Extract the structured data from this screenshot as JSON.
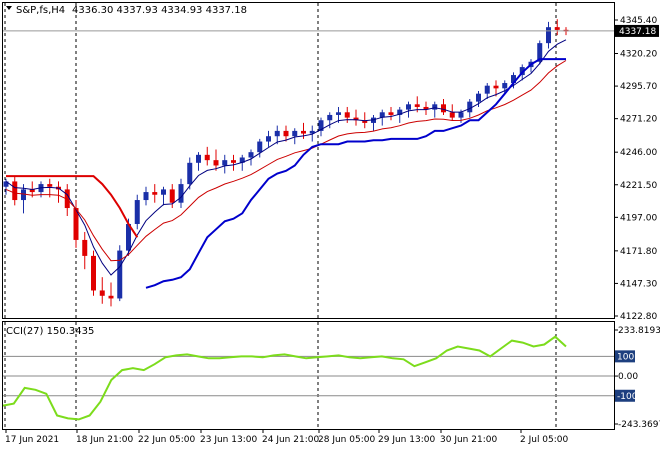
{
  "header": {
    "title": "S&P,fs,H4",
    "ohlc": "4336.30 4337.93 4334.93 4337.18",
    "collapse_icon": "triangle-down-icon"
  },
  "main_panel": {
    "price_labels": [
      "4345.40",
      "4320.20",
      "4295.70",
      "4271.20",
      "4246.00",
      "4221.50",
      "4197.00",
      "4171.80",
      "4147.30",
      "4122.80"
    ],
    "current_price": "4337.18",
    "current_price_value": 4337.18
  },
  "cci_panel": {
    "label": "CCI(27) 150.3435",
    "levels": [
      {
        "text": "233.8193",
        "highlight": false
      },
      {
        "text": "100",
        "highlight": true
      },
      {
        "text": "0.00",
        "highlight": false
      },
      {
        "text": "-100",
        "highlight": true
      },
      {
        "text": "-243.3697",
        "highlight": false
      }
    ]
  },
  "time_axis": [
    "17 Jun 2021",
    "18 Jun 21:00",
    "22 Jun 05:00",
    "23 Jun 13:00",
    "24 Jun 21:00",
    "28 Jun 05:00",
    "29 Jun 13:00",
    "30 Jun 21:00",
    "2 Jul 05:00"
  ],
  "colors": {
    "background": "#ffffff",
    "grid": "#c8c8c8",
    "bull_candle": "#1a2fa8",
    "bear_candle": "#e00000",
    "ma_fast": "#000080",
    "ma_slow": "#cc0000",
    "trail_stop_up": "#0000cc",
    "trail_stop_down": "#dd0000",
    "cci_line": "#7cdc1c",
    "level_tag": "#1d3f7f",
    "price_tag": "#000000"
  },
  "chart_data": {
    "type": "candlestick",
    "y_range": [
      4122.8,
      4345.4
    ],
    "candles": [
      [
        4220,
        4226,
        4214,
        4224
      ],
      [
        4224,
        4228,
        4206,
        4210
      ],
      [
        4210,
        4222,
        4200,
        4218
      ],
      [
        4218,
        4224,
        4212,
        4216
      ],
      [
        4216,
        4224,
        4212,
        4222
      ],
      [
        4222,
        4226,
        4212,
        4220
      ],
      [
        4220,
        4224,
        4208,
        4218
      ],
      [
        4218,
        4222,
        4198,
        4204
      ],
      [
        4204,
        4210,
        4174,
        4180
      ],
      [
        4180,
        4186,
        4158,
        4168
      ],
      [
        4168,
        4172,
        4138,
        4142
      ],
      [
        4142,
        4152,
        4132,
        4138
      ],
      [
        4138,
        4148,
        4130,
        4136
      ],
      [
        4136,
        4176,
        4134,
        4172
      ],
      [
        4172,
        4196,
        4168,
        4192
      ],
      [
        4192,
        4214,
        4188,
        4210
      ],
      [
        4210,
        4220,
        4206,
        4216
      ],
      [
        4216,
        4222,
        4208,
        4214
      ],
      [
        4214,
        4220,
        4206,
        4218
      ],
      [
        4218,
        4222,
        4204,
        4208
      ],
      [
        4208,
        4226,
        4204,
        4222
      ],
      [
        4222,
        4242,
        4218,
        4238
      ],
      [
        4238,
        4246,
        4232,
        4244
      ],
      [
        4244,
        4250,
        4236,
        4240
      ],
      [
        4240,
        4248,
        4232,
        4236
      ],
      [
        4236,
        4244,
        4230,
        4240
      ],
      [
        4240,
        4244,
        4232,
        4238
      ],
      [
        4238,
        4244,
        4232,
        4242
      ],
      [
        4242,
        4248,
        4236,
        4246
      ],
      [
        4246,
        4256,
        4242,
        4254
      ],
      [
        4254,
        4262,
        4250,
        4258
      ],
      [
        4258,
        4266,
        4252,
        4262
      ],
      [
        4262,
        4266,
        4254,
        4258
      ],
      [
        4258,
        4264,
        4252,
        4262
      ],
      [
        4262,
        4268,
        4256,
        4260
      ],
      [
        4260,
        4266,
        4254,
        4262
      ],
      [
        4262,
        4272,
        4258,
        4270
      ],
      [
        4270,
        4276,
        4264,
        4274
      ],
      [
        4274,
        4280,
        4268,
        4276
      ],
      [
        4276,
        4280,
        4268,
        4272
      ],
      [
        4272,
        4278,
        4266,
        4270
      ],
      [
        4270,
        4276,
        4264,
        4268
      ],
      [
        4268,
        4274,
        4262,
        4272
      ],
      [
        4272,
        4278,
        4266,
        4276
      ],
      [
        4276,
        4280,
        4270,
        4274
      ],
      [
        4274,
        4280,
        4268,
        4278
      ],
      [
        4278,
        4284,
        4272,
        4282
      ],
      [
        4282,
        4288,
        4276,
        4280
      ],
      [
        4280,
        4284,
        4274,
        4278
      ],
      [
        4278,
        4284,
        4272,
        4282
      ],
      [
        4282,
        4286,
        4274,
        4276
      ],
      [
        4276,
        4282,
        4270,
        4272
      ],
      [
        4272,
        4278,
        4268,
        4276
      ],
      [
        4276,
        4286,
        4272,
        4284
      ],
      [
        4284,
        4292,
        4280,
        4290
      ],
      [
        4290,
        4298,
        4286,
        4296
      ],
      [
        4296,
        4300,
        4288,
        4294
      ],
      [
        4294,
        4300,
        4290,
        4298
      ],
      [
        4298,
        4306,
        4294,
        4304
      ],
      [
        4304,
        4312,
        4300,
        4310
      ],
      [
        4310,
        4316,
        4306,
        4314
      ],
      [
        4314,
        4330,
        4312,
        4328
      ],
      [
        4328,
        4344,
        4324,
        4340
      ],
      [
        4340,
        4346,
        4334,
        4338
      ],
      [
        4338,
        4340,
        4334,
        4337
      ]
    ],
    "cci_range": [
      -243.3697,
      233.8193
    ],
    "cci_levels": [
      100,
      0,
      -100
    ],
    "cci": [
      -150,
      -140,
      -60,
      -70,
      -90,
      -200,
      -215,
      -220,
      -200,
      -130,
      -20,
      30,
      40,
      30,
      60,
      95,
      105,
      110,
      100,
      90,
      90,
      95,
      100,
      100,
      95,
      105,
      110,
      100,
      90,
      95,
      100,
      105,
      95,
      90,
      95,
      100,
      90,
      85,
      50,
      70,
      90,
      130,
      150,
      140,
      130,
      100,
      140,
      180,
      170,
      150,
      160,
      200,
      150
    ]
  }
}
